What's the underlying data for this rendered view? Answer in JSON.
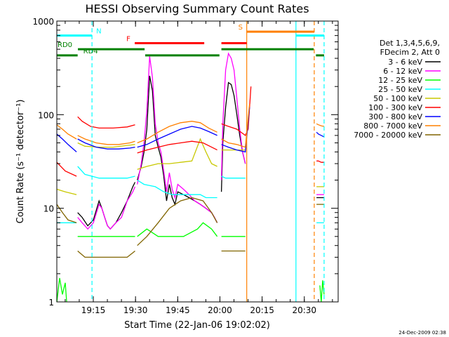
{
  "chart_data": {
    "type": "line",
    "title": "HESSI Observing Summary Count Rates",
    "xlabel": "Start Time (22-Jan-06 19:02:02)",
    "ylabel": "Count Rate (s⁻¹ detector⁻¹)",
    "yscale": "log",
    "ylim": [
      1,
      1000
    ],
    "xlim_minutes": [
      0,
      100
    ],
    "x_ticks": [
      {
        "label": "19:15",
        "t": 12.97
      },
      {
        "label": "19:30",
        "t": 27.97
      },
      {
        "label": "19:45",
        "t": 42.97
      },
      {
        "label": "20:00",
        "t": 57.97
      },
      {
        "label": "20:15",
        "t": 72.97
      },
      {
        "label": "20:30",
        "t": 87.97
      }
    ],
    "y_ticks": [
      {
        "label": "1",
        "v": 1
      },
      {
        "label": "10",
        "v": 10
      },
      {
        "label": "100",
        "v": 100
      },
      {
        "label": "1000",
        "v": 1000
      }
    ],
    "legend_header": [
      "Det 1,3,4,5,6,9,",
      "FDecim 2, Att 0"
    ],
    "legend_position": "right",
    "series": [
      {
        "name": "3 - 6 keV",
        "color": "#000000",
        "segments": [
          {
            "x": [
              7.4,
              9,
              11,
              13,
              15,
              16,
              17,
              18,
              19,
              21,
              23,
              25,
              27,
              27.8
            ],
            "y": [
              9,
              8,
              6.5,
              7.5,
              12,
              10,
              8,
              6.5,
              6,
              7,
              9,
              12,
              17,
              19
            ]
          },
          {
            "x": [
              28.6,
              30,
              31,
              32,
              33,
              34,
              35,
              36,
              37,
              38,
              39,
              40,
              41,
              42,
              43,
              45,
              47,
              49,
              51,
              53,
              55,
              56,
              57
            ],
            "y": [
              20,
              28,
              40,
              70,
              260,
              180,
              60,
              45,
              35,
              22,
              12,
              18,
              13,
              11,
              15,
              14,
              13,
              12,
              11,
              10,
              9,
              8,
              7
            ]
          },
          {
            "x": [
              58.5,
              59,
              60,
              61,
              62,
              63,
              64,
              65,
              66,
              67
            ],
            "y": [
              15,
              50,
              120,
              220,
              210,
              160,
              100,
              60,
              40,
              30
            ]
          },
          {
            "x": [
              92.3,
              93,
              94,
              95
            ],
            "y": [
              13,
              13,
              13,
              13
            ]
          }
        ]
      },
      {
        "name": "6 - 12 keV",
        "color": "#ff00ff",
        "segments": [
          {
            "x": [
              7.4,
              9,
              11,
              13,
              15,
              16,
              17,
              18,
              19,
              21,
              23,
              25,
              27,
              27.8
            ],
            "y": [
              8,
              7,
              6,
              7,
              11,
              10,
              8,
              6.5,
              6,
              7,
              8,
              12,
              15,
              17
            ]
          },
          {
            "x": [
              28.6,
              30,
              31,
              32,
              33,
              34,
              35,
              36,
              37,
              38,
              39,
              40,
              41,
              42,
              43,
              45,
              47,
              49,
              51,
              53,
              55,
              56,
              57
            ],
            "y": [
              18,
              30,
              50,
              110,
              420,
              250,
              80,
              50,
              40,
              25,
              15,
              24,
              16,
              13,
              18,
              16,
              14,
              12,
              11,
              10,
              9,
              8,
              7
            ]
          },
          {
            "x": [
              58.5,
              59,
              60,
              61,
              62,
              63,
              64,
              65,
              66,
              67
            ],
            "y": [
              20,
              80,
              300,
              450,
              400,
              300,
              150,
              70,
              40,
              30
            ]
          },
          {
            "x": [
              92.3,
              93,
              94,
              95
            ],
            "y": [
              14,
              14,
              14,
              14
            ]
          }
        ]
      },
      {
        "name": "12 - 25 keV",
        "color": "#00ff00",
        "segments": [
          {
            "x": [
              0,
              1,
              2,
              3,
              3.5
            ],
            "y": [
              1,
              1.8,
              1.2,
              1.6,
              1
            ]
          },
          {
            "x": [
              7.4,
              10,
              15,
              20,
              25,
              27.8
            ],
            "y": [
              5,
              5,
              5,
              5,
              5,
              5
            ]
          },
          {
            "x": [
              28.6,
              32,
              36,
              40,
              45,
              50,
              52,
              55,
              57
            ],
            "y": [
              5,
              6,
              5,
              5,
              5,
              6,
              7,
              6,
              5
            ]
          },
          {
            "x": [
              58.5,
              62,
              65,
              67
            ],
            "y": [
              5,
              5,
              5,
              5
            ]
          },
          {
            "x": [
              93.5,
              94,
              94.5,
              95
            ],
            "y": [
              1.5,
              1,
              1.7,
              1.2
            ]
          }
        ]
      },
      {
        "name": "25 - 50 keV",
        "color": "#00ffff",
        "segments": [
          {
            "x": [
              0,
              3,
              7
            ],
            "y": [
              7,
              7,
              7
            ]
          },
          {
            "x": [
              7.4,
              10,
              15,
              20,
              25,
              27.8
            ],
            "y": [
              28,
              23,
              21,
              21,
              21,
              22
            ]
          },
          {
            "x": [
              28.6,
              31,
              35,
              38,
              41,
              45,
              48,
              51,
              53,
              55,
              57
            ],
            "y": [
              20,
              18,
              17,
              15,
              14,
              14,
              14,
              14,
              13,
              13,
              13
            ]
          },
          {
            "x": [
              58.5,
              60,
              63,
              65,
              67
            ],
            "y": [
              22,
              21,
              21,
              21,
              21
            ]
          },
          {
            "x": [
              92.3,
              93,
              94,
              95
            ],
            "y": [
              7,
              7,
              7,
              7
            ]
          }
        ]
      },
      {
        "name": "50 - 100 keV",
        "color": "#c8c800",
        "segments": [
          {
            "x": [
              0,
              3,
              7
            ],
            "y": [
              16,
              15,
              14
            ]
          },
          {
            "x": [
              7.4,
              10,
              15,
              20,
              25,
              27.8
            ],
            "y": [
              50,
              46,
              45,
              45,
              47,
              48
            ]
          },
          {
            "x": [
              28.6,
              32,
              36,
              40,
              44,
              48,
              51,
              53,
              55,
              57
            ],
            "y": [
              26,
              28,
              30,
              30,
              31,
              32,
              55,
              40,
              30,
              28
            ]
          },
          {
            "x": [
              58.5,
              62,
              65,
              67
            ],
            "y": [
              42,
              42,
              42,
              42
            ]
          },
          {
            "x": [
              92.3,
              93,
              94,
              95
            ],
            "y": [
              17,
              17,
              17,
              17
            ]
          }
        ]
      },
      {
        "name": "100 - 300 keV",
        "color": "#ff0000",
        "segments": [
          {
            "x": [
              0,
              3,
              7
            ],
            "y": [
              31,
              25,
              22
            ]
          },
          {
            "x": [
              7.4,
              9,
              12,
              15,
              20,
              25,
              27.8
            ],
            "y": [
              95,
              85,
              75,
              72,
              72,
              74,
              78
            ]
          },
          {
            "x": [
              28.6,
              32,
              36,
              40,
              44,
              48,
              52,
              55,
              57
            ],
            "y": [
              39,
              42,
              45,
              48,
              50,
              52,
              50,
              45,
              42
            ]
          },
          {
            "x": [
              58.5,
              61,
              64,
              67,
              68,
              69
            ],
            "y": [
              80,
              75,
              70,
              60,
              70,
              200
            ]
          },
          {
            "x": [
              92.3,
              93,
              94,
              95
            ],
            "y": [
              32,
              32,
              31,
              31
            ]
          }
        ]
      },
      {
        "name": "300 - 800 keV",
        "color": "#0000ff",
        "segments": [
          {
            "x": [
              0,
              2,
              4,
              7
            ],
            "y": [
              62,
              55,
              48,
              40
            ]
          },
          {
            "x": [
              7.4,
              10,
              14,
              18,
              22,
              26,
              27.8
            ],
            "y": [
              55,
              50,
              45,
              43,
              43,
              44,
              45
            ]
          },
          {
            "x": [
              28.6,
              32,
              36,
              40,
              44,
              48,
              51,
              54,
              57
            ],
            "y": [
              45,
              48,
              55,
              62,
              70,
              75,
              72,
              66,
              60
            ]
          },
          {
            "x": [
              58.5,
              61,
              64,
              67,
              68.5
            ],
            "y": [
              48,
              45,
              42,
              40,
              120
            ]
          },
          {
            "x": [
              92.3,
              93,
              94,
              95
            ],
            "y": [
              65,
              62,
              60,
              58
            ]
          }
        ]
      },
      {
        "name": "800 - 7000 keV",
        "color": "#ff8000",
        "segments": [
          {
            "x": [
              0,
              2,
              4,
              7
            ],
            "y": [
              78,
              70,
              62,
              55
            ]
          },
          {
            "x": [
              7.4,
              10,
              14,
              18,
              22,
              26,
              27.8
            ],
            "y": [
              60,
              55,
              50,
              48,
              48,
              50,
              52
            ]
          },
          {
            "x": [
              28.6,
              32,
              36,
              40,
              44,
              48,
              51,
              54,
              57
            ],
            "y": [
              50,
              55,
              65,
              75,
              82,
              85,
              82,
              72,
              65
            ]
          },
          {
            "x": [
              58.5,
              61,
              64,
              67,
              68.5
            ],
            "y": [
              55,
              50,
              48,
              45,
              130
            ]
          },
          {
            "x": [
              92.3,
              93,
              94,
              95
            ],
            "y": [
              80,
              78,
              76,
              75
            ]
          }
        ]
      },
      {
        "name": "7000 - 20000 keV",
        "color": "#806400",
        "segments": [
          {
            "x": [
              0,
              2,
              4,
              7
            ],
            "y": [
              11,
              9,
              7.5,
              7
            ]
          },
          {
            "x": [
              7.4,
              10,
              15,
              20,
              25,
              27.8
            ],
            "y": [
              3.5,
              3,
              3,
              3,
              3,
              3.5
            ]
          },
          {
            "x": [
              28.6,
              32,
              36,
              40,
              44,
              48,
              52,
              55,
              57
            ],
            "y": [
              4,
              5,
              7,
              10,
              12,
              13,
              12,
              9,
              7
            ]
          },
          {
            "x": [
              58.5,
              62,
              65,
              67
            ],
            "y": [
              3.5,
              3.5,
              3.5,
              3.5
            ]
          },
          {
            "x": [
              92.3,
              93,
              94,
              95
            ],
            "y": [
              11,
              11,
              11,
              11
            ]
          }
        ]
      }
    ],
    "flag_bars": [
      {
        "label": "N",
        "color": "#00ffff",
        "segments": [
          [
            0,
            12.5
          ],
          [
            85,
            95
          ]
        ],
        "level": 700
      },
      {
        "label": "S",
        "color": "#ff8000",
        "segments": [
          [
            67.5,
            91.5
          ]
        ],
        "level": 770
      },
      {
        "label": "F",
        "color": "#ff0000",
        "segments": [
          [
            27.7,
            52.4
          ],
          [
            58.5,
            67.5
          ]
        ],
        "level": 580
      },
      {
        "label": "RD0",
        "color": "#008000",
        "segments": [
          [
            7.5,
            31.2
          ],
          [
            58.5,
            91.3
          ]
        ],
        "level": 500
      },
      {
        "label": "RD4",
        "color": "#008000",
        "segments": [
          [
            0,
            7.4
          ],
          [
            31.4,
            57.8
          ],
          [
            92.1,
            95
          ]
        ],
        "level": 430
      }
    ],
    "vertical_lines": [
      {
        "t": 12.5,
        "color": "#00ffff",
        "style": "dashed"
      },
      {
        "t": 67.5,
        "color": "#ff8000",
        "style": "solid"
      },
      {
        "t": 85.0,
        "color": "#00ffff",
        "style": "solid"
      },
      {
        "t": 91.5,
        "color": "#ff8000",
        "style": "dashed"
      },
      {
        "t": 95.0,
        "color": "#00ffff",
        "style": "dashed"
      }
    ],
    "footer_timestamp": "24-Dec-2009 02:38"
  }
}
